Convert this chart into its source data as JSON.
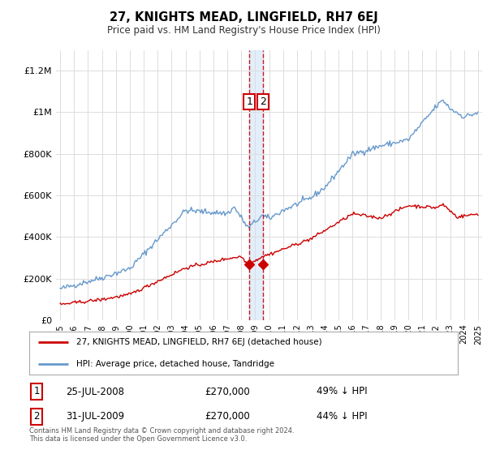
{
  "title": "27, KNIGHTS MEAD, LINGFIELD, RH7 6EJ",
  "subtitle": "Price paid vs. HM Land Registry's House Price Index (HPI)",
  "legend_line1": "27, KNIGHTS MEAD, LINGFIELD, RH7 6EJ (detached house)",
  "legend_line2": "HPI: Average price, detached house, Tandridge",
  "footnote": "Contains HM Land Registry data © Crown copyright and database right 2024.\nThis data is licensed under the Open Government Licence v3.0.",
  "transaction1_label": "1",
  "transaction1_date": "25-JUL-2008",
  "transaction1_price": "£270,000",
  "transaction1_hpi": "49% ↓ HPI",
  "transaction2_label": "2",
  "transaction2_date": "31-JUL-2009",
  "transaction2_price": "£270,000",
  "transaction2_hpi": "44% ↓ HPI",
  "red_color": "#cc0000",
  "blue_color": "#6699cc",
  "vline_color": "#cc0000",
  "shade_color": "#d0e4f7",
  "ylim_max": 1300000,
  "background_color": "#ffffff",
  "t1": 2008.583,
  "t2": 2009.583
}
